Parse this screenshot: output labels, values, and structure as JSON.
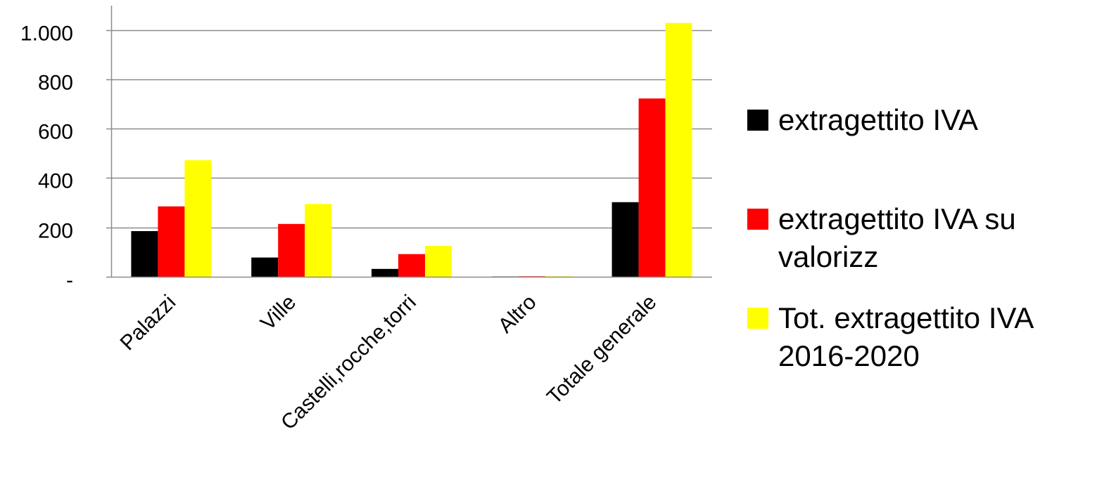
{
  "chart_data": {
    "type": "bar",
    "title": "",
    "xlabel": "",
    "ylabel": "",
    "categories": [
      "Palazzi",
      "Ville",
      "Castelli,rocche,torri",
      "Altro",
      "Totale generale"
    ],
    "series": [
      {
        "name": "extragettito IVA",
        "color": "#000000",
        "values": [
          185,
          78,
          32,
          1,
          302
        ]
      },
      {
        "name": "extragettito IVA su valorizz",
        "color": "#ff0000",
        "values": [
          285,
          214,
          92,
          2,
          722
        ]
      },
      {
        "name": "Tot. extragettito IVA 2016-2020",
        "color": "#ffff00",
        "values": [
          472,
          295,
          125,
          2,
          1028
        ]
      }
    ],
    "y_ticks": [
      {
        "value": 0,
        "label": "-"
      },
      {
        "value": 200,
        "label": "200"
      },
      {
        "value": 400,
        "label": "400"
      },
      {
        "value": 600,
        "label": "600"
      },
      {
        "value": 800,
        "label": "800"
      },
      {
        "value": 1000,
        "label": "1.000"
      }
    ],
    "ylim": [
      0,
      1100
    ],
    "grid": true,
    "legend_position": "right"
  }
}
